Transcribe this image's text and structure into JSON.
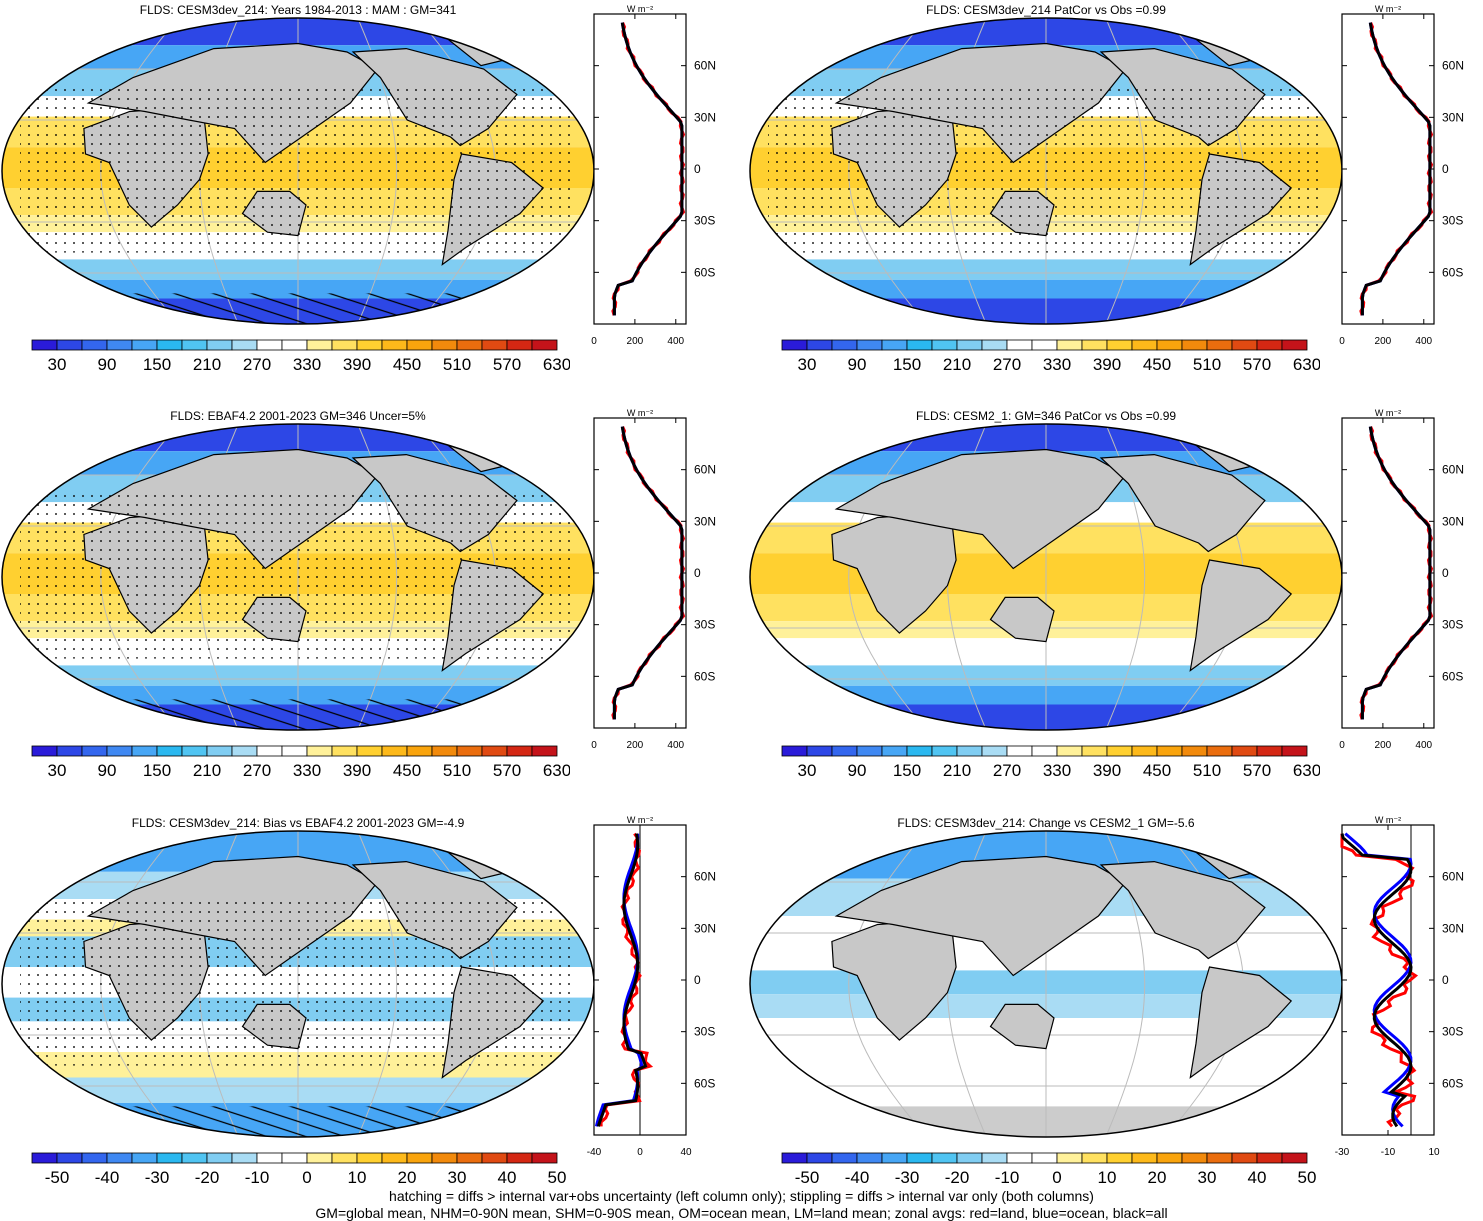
{
  "panels": [
    {
      "title": "FLDS: CESM3dev_214: Years 1984-2013 : MAM : GM=341",
      "kind": "abs",
      "hatching": true,
      "stippling": true
    },
    {
      "title": "FLDS: CESM3dev_214 PatCor vs Obs =0.99",
      "kind": "abs",
      "hatching": false,
      "stippling": true
    },
    {
      "title": "FLDS: EBAF4.2 2001-2023 GM=346 Uncer=5%",
      "kind": "abs",
      "hatching": true,
      "stippling": true
    },
    {
      "title": "FLDS: CESM2_1: GM=346 PatCor vs Obs =0.99",
      "kind": "abs",
      "hatching": false,
      "stippling": false
    },
    {
      "title": "FLDS: CESM3dev_214: Bias vs EBAF4.2 2001-2023 GM=-4.9",
      "kind": "diff",
      "hatching": true,
      "stippling": true
    },
    {
      "title": "FLDS: CESM3dev_214: Change vs CESM2_1 GM=-5.6",
      "kind": "diff2",
      "hatching": false,
      "stippling": false
    }
  ],
  "profile": {
    "units": "W m⁻²",
    "lat_labels": [
      "60N",
      "30N",
      "0",
      "30S",
      "60S"
    ],
    "x_ticks_abs": [
      "0",
      "200",
      "400"
    ],
    "x_ticks_bias": [
      "-40",
      "0",
      "40"
    ],
    "x_ticks_change": [
      "-30",
      "-10",
      "10"
    ]
  },
  "colorbars": {
    "abs_labels": [
      "30",
      "90",
      "150",
      "210",
      "270",
      "330",
      "390",
      "450",
      "510",
      "570",
      "630"
    ],
    "diff_labels": [
      "-50",
      "-40",
      "-30",
      "-20",
      "-10",
      "0",
      "10",
      "20",
      "30",
      "40",
      "50"
    ],
    "colors": [
      "#2a1bd9",
      "#2d47e6",
      "#3366ee",
      "#3f88f2",
      "#47a6f5",
      "#2ab8f0",
      "#50c4f2",
      "#80cdf2",
      "#a9dcf4",
      "#ffffff",
      "#ffffff",
      "#fff19a",
      "#ffe160",
      "#ffd030",
      "#fdb91a",
      "#f9a40d",
      "#f28a0c",
      "#ea6d0e",
      "#e04a12",
      "#d42713",
      "#c4131a"
    ]
  },
  "footer": {
    "line1": "hatching = diffs > internal var+obs uncertainty (left column only); stippling = diffs > internal var only (both columns)",
    "line2": "GM=global mean, NHM=0-90N mean, SHM=0-90S mean, OM=ocean mean, LM=land mean; zonal avgs: red=land, blue=ocean, black=all"
  },
  "legend_colors": {
    "land": "#ff0000",
    "ocean": "#0000ff",
    "all": "#000000"
  }
}
